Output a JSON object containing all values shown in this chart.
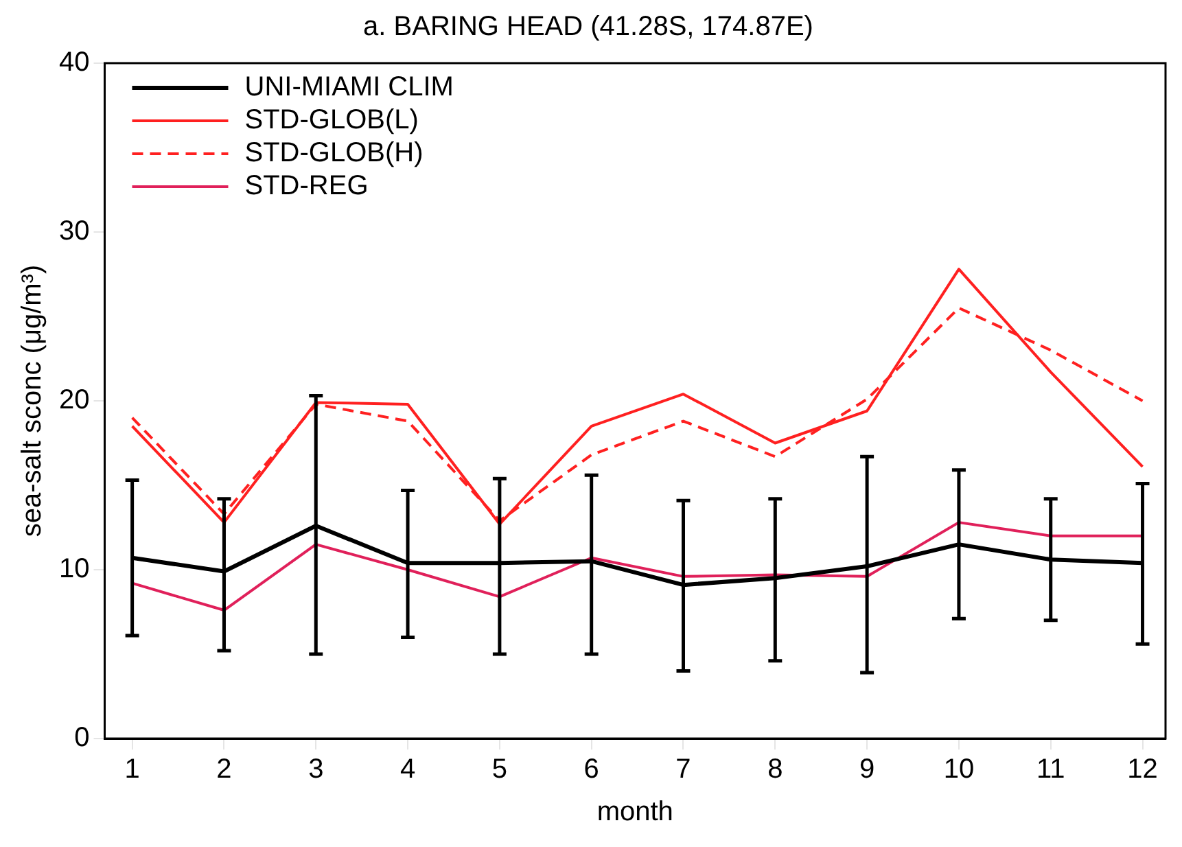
{
  "chart_data": {
    "type": "line",
    "title": "a. BARING HEAD (41.28S, 174.87E)",
    "xlabel": "month",
    "ylabel": "sea-salt sconc (μg/m³)",
    "x": [
      1,
      2,
      3,
      4,
      5,
      6,
      7,
      8,
      9,
      10,
      11,
      12
    ],
    "xlim": [
      0.7,
      12.25
    ],
    "xticks": [
      1,
      2,
      3,
      4,
      5,
      6,
      7,
      8,
      9,
      10,
      11,
      12
    ],
    "ylim": [
      0,
      40
    ],
    "yticks": [
      0,
      10,
      20,
      30,
      40
    ],
    "grid": false,
    "legend": "top left",
    "marker": "none",
    "series": [
      {
        "name": "UNI-MIAMI CLIM",
        "color": "#000000",
        "line_style": "solid",
        "values": [
          10.7,
          9.9,
          12.6,
          10.4,
          10.4,
          10.5,
          9.1,
          9.5,
          10.2,
          11.5,
          10.6,
          10.4
        ],
        "errors": [
          [
            6.1,
            15.3
          ],
          [
            5.2,
            14.2
          ],
          [
            5.0,
            20.3
          ],
          [
            6.0,
            14.7
          ],
          [
            5.0,
            15.4
          ],
          [
            5.0,
            15.6
          ],
          [
            4.0,
            14.1
          ],
          [
            4.6,
            14.2
          ],
          [
            3.9,
            16.7
          ],
          [
            7.1,
            15.9
          ],
          [
            7.0,
            14.2
          ],
          [
            5.6,
            15.1
          ]
        ]
      },
      {
        "name": "STD-GLOB(L)",
        "color": "#ff2020",
        "line_style": "solid",
        "values": [
          18.5,
          12.8,
          19.9,
          19.8,
          12.7,
          18.5,
          20.4,
          17.5,
          19.4,
          27.8,
          21.7,
          16.1
        ]
      },
      {
        "name": "STD-GLOB(H)",
        "color": "#ff2020",
        "line_style": "dashed",
        "values": [
          19.0,
          13.3,
          19.8,
          18.8,
          12.9,
          16.8,
          18.8,
          16.7,
          20.1,
          25.5,
          23.0,
          20.0
        ]
      },
      {
        "name": "STD-REG",
        "color": "#e0205a",
        "line_style": "solid",
        "values": [
          9.2,
          7.6,
          11.5,
          10.0,
          8.4,
          10.7,
          9.6,
          9.7,
          9.6,
          12.8,
          12.0,
          12.0
        ]
      }
    ]
  }
}
